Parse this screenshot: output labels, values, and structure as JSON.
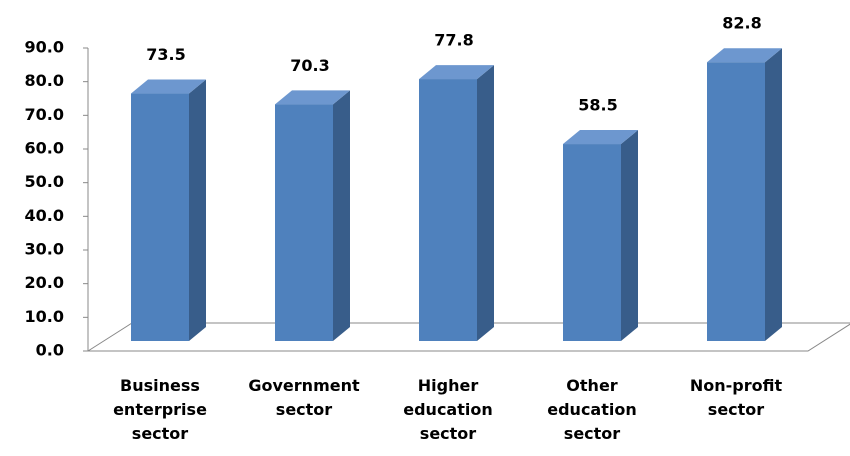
{
  "chart_data": {
    "type": "bar3d",
    "categories": [
      "Business enterprise sector",
      "Government sector",
      "Higher education sector",
      "Other education sector",
      "Non-profit sector"
    ],
    "values": [
      73.5,
      70.3,
      77.8,
      58.5,
      82.8
    ],
    "color": "#4f81bd",
    "ylim": [
      0,
      90
    ],
    "yticks": [
      {
        "value": 0,
        "label": "0.0"
      },
      {
        "value": 10,
        "label": "10.0"
      },
      {
        "value": 20,
        "label": "20.0"
      },
      {
        "value": 30,
        "label": "30.0"
      },
      {
        "value": 40,
        "label": "40.0"
      },
      {
        "value": 50,
        "label": "50.0"
      },
      {
        "value": 60,
        "label": "60.0"
      },
      {
        "value": 70,
        "label": "70.0"
      },
      {
        "value": 80,
        "label": "80.0"
      },
      {
        "value": 90,
        "label": "90.0"
      }
    ],
    "grid": false
  }
}
